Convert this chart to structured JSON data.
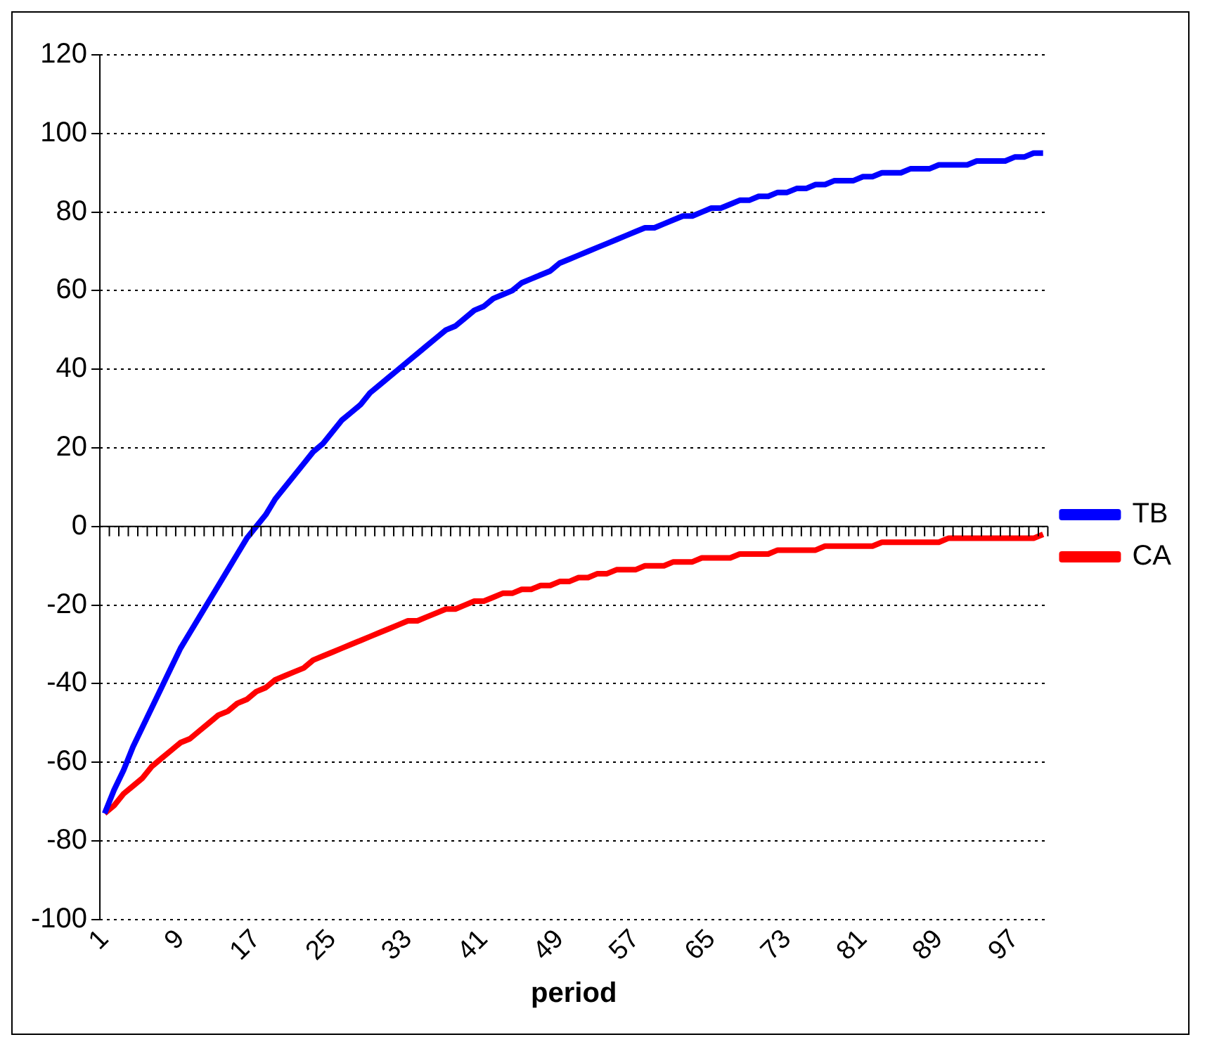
{
  "chart_data": {
    "type": "line",
    "xlabel": "period",
    "categories": [
      "1",
      null,
      null,
      null,
      null,
      null,
      null,
      null,
      "9",
      null,
      null,
      null,
      null,
      null,
      null,
      null,
      "17",
      null,
      null,
      null,
      null,
      null,
      null,
      null,
      "25",
      null,
      null,
      null,
      null,
      null,
      null,
      null,
      "33",
      null,
      null,
      null,
      null,
      null,
      null,
      null,
      "41",
      null,
      null,
      null,
      null,
      null,
      null,
      null,
      "49",
      null,
      null,
      null,
      null,
      null,
      null,
      null,
      "57",
      null,
      null,
      null,
      null,
      null,
      null,
      null,
      "65",
      null,
      null,
      null,
      null,
      null,
      null,
      null,
      "73",
      null,
      null,
      null,
      null,
      null,
      null,
      null,
      "81",
      null,
      null,
      null,
      null,
      null,
      null,
      null,
      "89",
      null,
      null,
      null,
      null,
      null,
      null,
      null,
      "97",
      null,
      null,
      null
    ],
    "series": [
      {
        "name": "TB",
        "color": "#0000ff",
        "values": [
          -73,
          -67,
          -62,
          -56,
          -51,
          -46,
          -41,
          -36,
          -31,
          -27,
          -23,
          -19,
          -15,
          -11,
          -7,
          -3,
          0,
          3,
          7,
          10,
          13,
          16,
          19,
          21,
          24,
          27,
          29,
          31,
          34,
          36,
          38,
          40,
          42,
          44,
          46,
          48,
          50,
          51,
          53,
          55,
          56,
          58,
          59,
          60,
          62,
          63,
          64,
          65,
          67,
          68,
          69,
          70,
          71,
          72,
          73,
          74,
          75,
          76,
          76,
          77,
          78,
          79,
          79,
          80,
          81,
          81,
          82,
          83,
          83,
          84,
          84,
          85,
          85,
          86,
          86,
          87,
          87,
          88,
          88,
          88,
          89,
          89,
          90,
          90,
          90,
          91,
          91,
          91,
          92,
          92,
          92,
          92,
          93,
          93,
          93,
          93,
          94,
          94,
          95,
          95
        ]
      },
      {
        "name": "CA",
        "color": "#ff0000",
        "values": [
          -73,
          -71,
          -68,
          -66,
          -64,
          -61,
          -59,
          -57,
          -55,
          -54,
          -52,
          -50,
          -48,
          -47,
          -45,
          -44,
          -42,
          -41,
          -39,
          -38,
          -37,
          -36,
          -34,
          -33,
          -32,
          -31,
          -30,
          -29,
          -28,
          -27,
          -26,
          -25,
          -24,
          -24,
          -23,
          -22,
          -21,
          -21,
          -20,
          -19,
          -19,
          -18,
          -17,
          -17,
          -16,
          -16,
          -15,
          -15,
          -14,
          -14,
          -13,
          -13,
          -12,
          -12,
          -11,
          -11,
          -11,
          -10,
          -10,
          -10,
          -9,
          -9,
          -9,
          -8,
          -8,
          -8,
          -8,
          -7,
          -7,
          -7,
          -7,
          -6,
          -6,
          -6,
          -6,
          -6,
          -5,
          -5,
          -5,
          -5,
          -5,
          -5,
          -4,
          -4,
          -4,
          -4,
          -4,
          -4,
          -4,
          -3,
          -3,
          -3,
          -3,
          -3,
          -3,
          -3,
          -3,
          -3,
          -3,
          -2
        ]
      }
    ],
    "ylim": [
      -100,
      120
    ],
    "yticks": [
      -100,
      -80,
      -60,
      -40,
      -20,
      0,
      20,
      40,
      60,
      80,
      100,
      120
    ],
    "grid": "y",
    "legend": "right",
    "marker": "none",
    "line_style": "solid"
  }
}
